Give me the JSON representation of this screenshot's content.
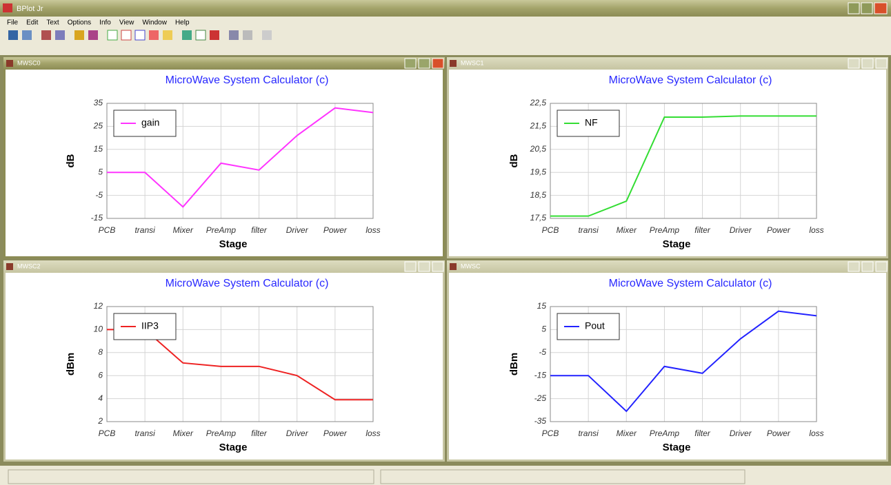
{
  "app": {
    "title": "BPlot Jr",
    "menu": [
      "File",
      "Edit",
      "Text",
      "Options",
      "Info",
      "View",
      "Window",
      "Help"
    ]
  },
  "windows": [
    "MWSC0",
    "MWSC1",
    "MWSC2",
    "MWSC"
  ],
  "chart_data": [
    {
      "type": "line",
      "title": "MicroWave System Calculator (c)",
      "xlabel": "Stage",
      "ylabel": "dB",
      "categories": [
        "PCB",
        "transi",
        "Mixer",
        "PreAmp",
        "filter",
        "Driver",
        "Power",
        "loss"
      ],
      "series": [
        {
          "name": "gain",
          "color": "#ff33ff",
          "values": [
            5,
            5,
            -10,
            9,
            6,
            21,
            33,
            31
          ]
        }
      ],
      "ylim": [
        -15,
        35
      ],
      "yticks": [
        -15,
        -5,
        5,
        15,
        25,
        35
      ],
      "grid": true,
      "legend": "upper left"
    },
    {
      "type": "line",
      "title": "MicroWave System Calculator (c)",
      "xlabel": "Stage",
      "ylabel": "dB",
      "categories": [
        "PCB",
        "transi",
        "Mixer",
        "PreAmp",
        "filter",
        "Driver",
        "Power",
        "loss"
      ],
      "series": [
        {
          "name": "NF",
          "color": "#33dd33",
          "values": [
            17.6,
            17.6,
            18.25,
            21.9,
            21.9,
            21.95,
            21.95,
            21.95
          ]
        }
      ],
      "ylim": [
        17.5,
        22.5
      ],
      "yticks": [
        {
          "value": 17.5,
          "label": "17,5"
        },
        {
          "value": 18.5,
          "label": "18,5"
        },
        {
          "value": 19.5,
          "label": "19,5"
        },
        {
          "value": 20.5,
          "label": "20,5"
        },
        {
          "value": 21.5,
          "label": "21,5"
        },
        {
          "value": 22.5,
          "label": "22,5"
        }
      ],
      "grid": true,
      "legend": "upper left"
    },
    {
      "type": "line",
      "title": "MicroWave System Calculator (c)",
      "xlabel": "Stage",
      "ylabel": "dBm",
      "categories": [
        "PCB",
        "transi",
        "Mixer",
        "PreAmp",
        "filter",
        "Driver",
        "Power",
        "loss"
      ],
      "series": [
        {
          "name": "IIP3",
          "color": "#ee2222",
          "values": [
            10,
            10,
            7.1,
            6.8,
            6.8,
            6,
            3.9,
            3.9
          ]
        }
      ],
      "ylim": [
        2,
        12
      ],
      "yticks": [
        2,
        4,
        6,
        8,
        10,
        12
      ],
      "grid": true,
      "legend": "upper left"
    },
    {
      "type": "line",
      "title": "MicroWave System Calculator (c)",
      "xlabel": "Stage",
      "ylabel": "dBm",
      "categories": [
        "PCB",
        "transi",
        "Mixer",
        "PreAmp",
        "filter",
        "Driver",
        "Power",
        "loss"
      ],
      "series": [
        {
          "name": "Pout",
          "color": "#2222ff",
          "values": [
            -15,
            -15,
            -30.5,
            -11,
            -14,
            1,
            13,
            11
          ]
        }
      ],
      "ylim": [
        -35,
        15
      ],
      "yticks": [
        -35,
        -25,
        -15,
        -5,
        5,
        15
      ],
      "grid": true,
      "legend": "upper left"
    }
  ]
}
